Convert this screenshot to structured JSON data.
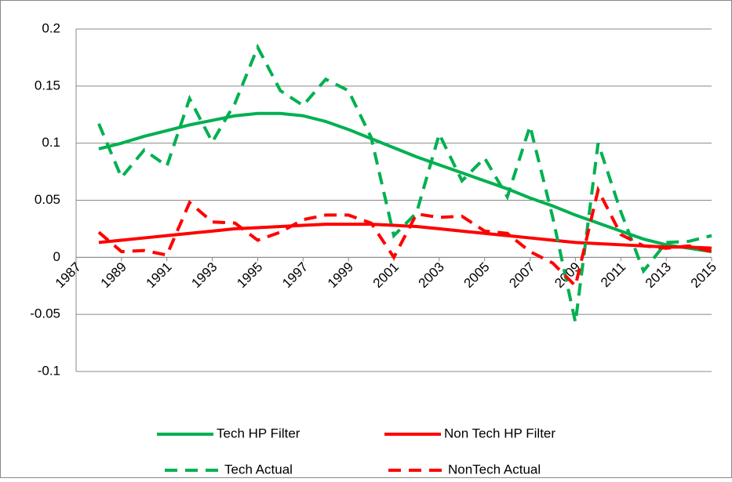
{
  "chart_data": {
    "type": "line",
    "xlim": [
      1987,
      2015
    ],
    "xticks": [
      1987,
      1989,
      1991,
      1993,
      1995,
      1997,
      1999,
      2001,
      2003,
      2005,
      2007,
      2009,
      2011,
      2013,
      2015
    ],
    "ylim": [
      -0.1,
      0.2
    ],
    "yticks": [
      -0.1,
      -0.05,
      0,
      0.05,
      0.1,
      0.15,
      0.2
    ],
    "grid": true,
    "legend": "bottom",
    "x": [
      1988,
      1989,
      1990,
      1991,
      1992,
      1993,
      1994,
      1995,
      1996,
      1997,
      1998,
      1999,
      2000,
      2001,
      2002,
      2003,
      2004,
      2005,
      2006,
      2007,
      2008,
      2009,
      2010,
      2011,
      2012,
      2013,
      2014,
      2015
    ],
    "series": [
      {
        "name": "Tech HP Filter",
        "color": "#00b050",
        "style": "solid",
        "values": [
          0.095,
          0.1,
          0.106,
          0.111,
          0.116,
          0.12,
          0.124,
          0.126,
          0.126,
          0.124,
          0.119,
          0.112,
          0.104,
          0.096,
          0.088,
          0.081,
          0.074,
          0.067,
          0.06,
          0.052,
          0.045,
          0.037,
          0.03,
          0.023,
          0.016,
          0.011,
          0.008,
          0.005
        ]
      },
      {
        "name": "Non Tech HP Filter",
        "color": "#ff0000",
        "style": "solid",
        "values": [
          0.013,
          0.015,
          0.017,
          0.019,
          0.021,
          0.023,
          0.025,
          0.026,
          0.027,
          0.028,
          0.029,
          0.029,
          0.029,
          0.028,
          0.027,
          0.025,
          0.023,
          0.021,
          0.019,
          0.017,
          0.015,
          0.013,
          0.012,
          0.011,
          0.01,
          0.009,
          0.009,
          0.008
        ]
      },
      {
        "name": "Tech Actual",
        "color": "#00b050",
        "style": "dashed",
        "values": [
          0.117,
          0.07,
          0.094,
          0.08,
          0.139,
          0.101,
          0.135,
          0.184,
          0.146,
          0.133,
          0.156,
          0.146,
          0.105,
          0.019,
          0.039,
          0.108,
          0.067,
          0.087,
          0.053,
          0.115,
          0.035,
          -0.057,
          0.1,
          0.04,
          -0.012,
          0.013,
          0.014,
          0.019
        ]
      },
      {
        "name": "NonTech Actual",
        "color": "#ff0000",
        "style": "dashed",
        "values": [
          0.022,
          0.005,
          0.006,
          0.002,
          0.048,
          0.031,
          0.03,
          0.015,
          0.022,
          0.033,
          0.037,
          0.037,
          0.03,
          0.0,
          0.038,
          0.035,
          0.036,
          0.023,
          0.021,
          0.005,
          -0.005,
          -0.025,
          0.059,
          0.02,
          0.01,
          0.008,
          0.01,
          0.005
        ]
      }
    ]
  }
}
